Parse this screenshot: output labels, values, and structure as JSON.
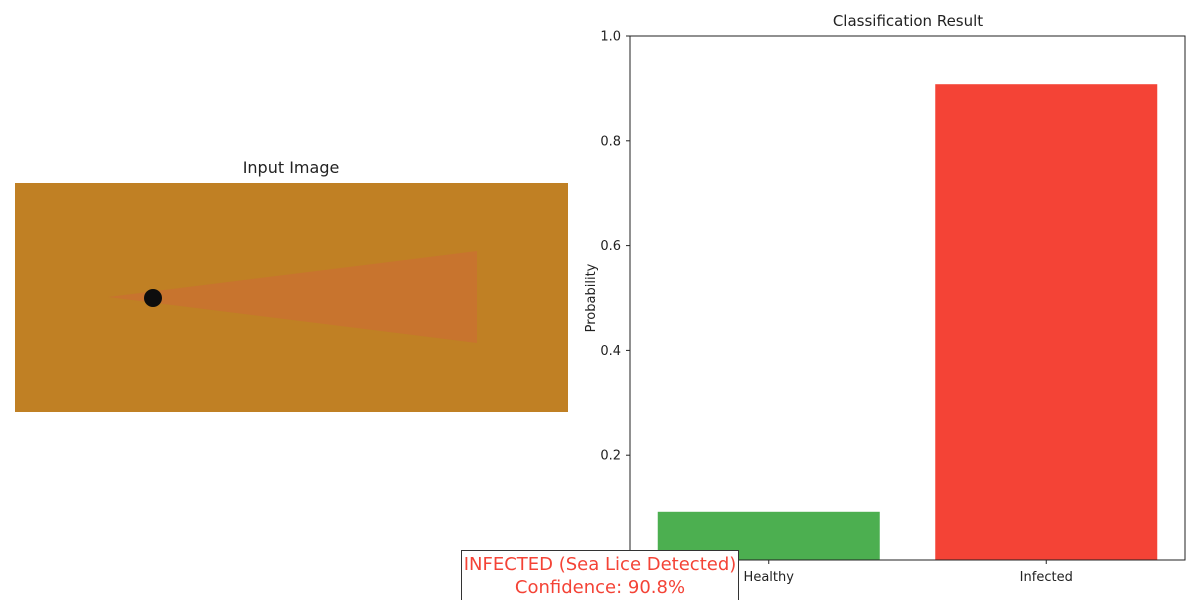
{
  "image_panel": {
    "title": "Input Image",
    "colors": {
      "background": "#c08024",
      "wedge": "#c8742e",
      "spot": "#0d0d0d"
    }
  },
  "chart_data": {
    "type": "bar",
    "title": "Classification Result",
    "xlabel": "",
    "ylabel": "Probability",
    "categories": [
      "Healthy",
      "Infected"
    ],
    "values": [
      0.092,
      0.908
    ],
    "colors": [
      "#4caf50",
      "#f44336"
    ],
    "ylim": [
      0,
      1.0
    ],
    "yticks": [
      "0.2",
      "0.4",
      "0.6",
      "0.8",
      "1.0"
    ],
    "ytick_values": [
      0.2,
      0.4,
      0.6,
      0.8,
      1.0
    ],
    "grid": false,
    "legend": "none"
  },
  "verdict": {
    "line1": "INFECTED (Sea Lice Detected)",
    "line2": "Confidence: 90.8%",
    "color": "#f44336"
  }
}
